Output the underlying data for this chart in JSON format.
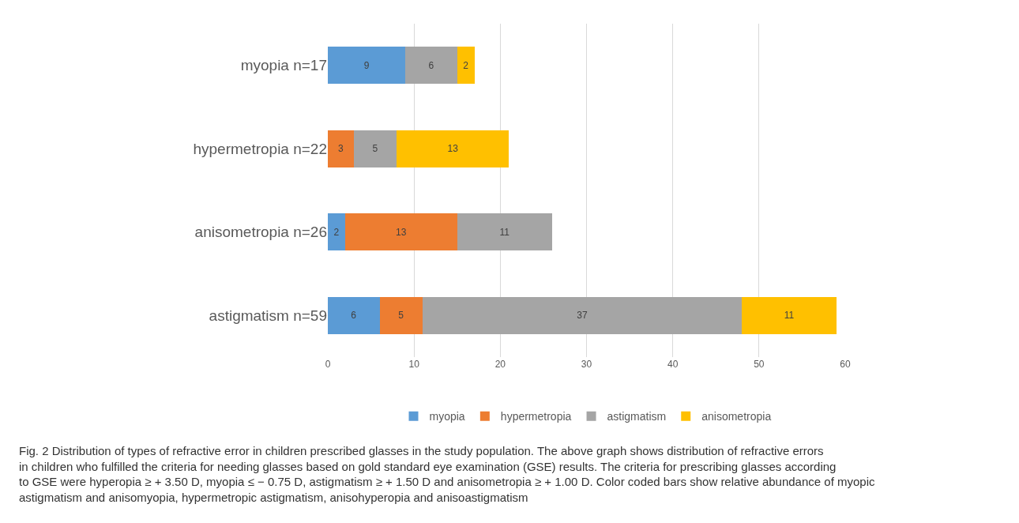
{
  "chart_data": {
    "type": "bar",
    "orientation": "horizontal",
    "stacked": true,
    "categories": [
      "myopia n=17",
      "hypermetropia n=22",
      "anisometropia n=26",
      "astigmatism n=59"
    ],
    "series": [
      {
        "name": "myopia",
        "color": "#5b9bd5",
        "values": [
          9,
          null,
          2,
          6
        ]
      },
      {
        "name": "hypermetropia",
        "color": "#ed7d31",
        "values": [
          null,
          3,
          13,
          5
        ]
      },
      {
        "name": "astigmatism",
        "color": "#a5a5a5",
        "values": [
          6,
          5,
          11,
          37
        ]
      },
      {
        "name": "anisometropia",
        "color": "#ffc000",
        "values": [
          2,
          13,
          null,
          11
        ]
      }
    ],
    "xlim": [
      0,
      60
    ],
    "xticks": [
      0,
      10,
      20,
      30,
      40,
      50,
      60
    ],
    "grid": "x",
    "legend": "bottom",
    "data_labels": true,
    "annotations": [
      "Fig. 2 Distribution of types of refractive error in children prescribed glasses in the study population. The above graph shows distribution of refractive errors in children who fulfilled the criteria for needing glasses based on gold standard eye examination (GSE) results. The criteria for prescribing glasses according to GSE were hyperopia ≥ + 3.50 D, myopia ≤ − 0.75 D, astigmatism ≥ + 1.50 D and anisometropia ≥ + 1.00 D. Color coded bars show relative abundance of myopic astigmatism and anisomyopia, hypermetropic astigmatism, anisohyperopia and anisoastigmatism"
    ]
  }
}
